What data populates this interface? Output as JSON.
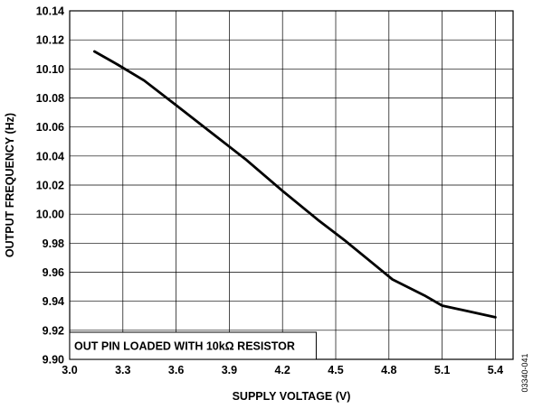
{
  "chart_data": {
    "type": "line",
    "xlabel": "SUPPLY VOLTAGE (V)",
    "ylabel": "OUTPUT FREQUENCY (Hz)",
    "xlim": [
      3.0,
      5.5
    ],
    "ylim": [
      9.9,
      10.14
    ],
    "x_ticks": [
      "3.0",
      "3.3",
      "3.6",
      "3.9",
      "4.2",
      "4.5",
      "4.8",
      "5.1",
      "5.4"
    ],
    "y_ticks": [
      "9.90",
      "9.92",
      "9.94",
      "9.96",
      "9.98",
      "10.00",
      "10.02",
      "10.04",
      "10.06",
      "10.08",
      "10.10",
      "10.12",
      "10.14"
    ],
    "grid": true,
    "series": [
      {
        "x": [
          3.14,
          3.27,
          3.42,
          3.6,
          3.8,
          3.99,
          4.2,
          4.4,
          4.55,
          4.7,
          4.82,
          5.0,
          5.1,
          5.25,
          5.4
        ],
        "y": [
          10.112,
          10.103,
          10.092,
          10.075,
          10.056,
          10.038,
          10.016,
          9.996,
          9.982,
          9.967,
          9.955,
          9.944,
          9.937,
          9.933,
          9.929
        ]
      }
    ],
    "annotation": "OUT PIN LOADED WITH 10kΩ RESISTOR"
  },
  "figure_id": "03340-041"
}
